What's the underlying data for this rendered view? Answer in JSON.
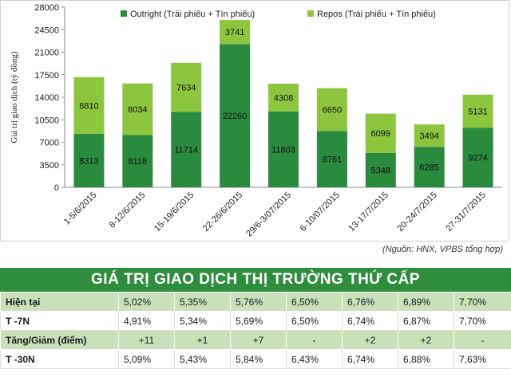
{
  "chart_data": {
    "type": "bar",
    "stacked": true,
    "categories": [
      "1-5/6/2015",
      "8-12/6/2015",
      "15-19/6/2015",
      "22-26/6/2015",
      "29/6-3/07/2015",
      "6-10/07/2015",
      "13-17/7/2015",
      "20-24/7/2015",
      "27-31/7/2015"
    ],
    "series": [
      {
        "name": "Outright (Trái phiếu + Tín phiếu)",
        "color": "#2a8a3e",
        "values": [
          8313,
          8118,
          11714,
          22260,
          11803,
          8761,
          5348,
          6285,
          9274
        ]
      },
      {
        "name": "Repos (Trái phiếu + Tín phiếu)",
        "color": "#8cc63f",
        "values": [
          8810,
          8034,
          7634,
          3741,
          4308,
          6650,
          6099,
          3494,
          5131
        ]
      }
    ],
    "ylabel": "Giá trị giao dịch (tỷ đồng)",
    "xlabel": "",
    "ylim": [
      0,
      28000
    ],
    "yticks": [
      0,
      3500,
      7000,
      10500,
      14000,
      17500,
      21000,
      24500,
      28000
    ],
    "grid": false,
    "legend": "top"
  },
  "source_note": "(Nguồn: HNX, VPBS tổng hợp)",
  "table": {
    "title": "GIÁ TRỊ GIAO DỊCH THỊ TRƯỜNG THỨ CẤP",
    "rows": [
      {
        "label": "Hiện tại",
        "cells": [
          "5,02%",
          "5,35%",
          "5,76%",
          "6,50%",
          "6,76%",
          "6,89%",
          "7,70%"
        ]
      },
      {
        "label": "T -7N",
        "cells": [
          "4,91%",
          "5,34%",
          "5,69%",
          "6,50%",
          "6,74%",
          "6,87%",
          "7,70%"
        ]
      },
      {
        "label": "Tăng/Giảm (điểm)",
        "cells": [
          "+11",
          "+1",
          "+7",
          "-",
          "+2",
          "+2",
          "-"
        ]
      },
      {
        "label": "T -30N",
        "cells": [
          "5,09%",
          "5,43%",
          "5,84%",
          "6,43%",
          "6,74%",
          "6,88%",
          "7,63%"
        ]
      }
    ]
  }
}
